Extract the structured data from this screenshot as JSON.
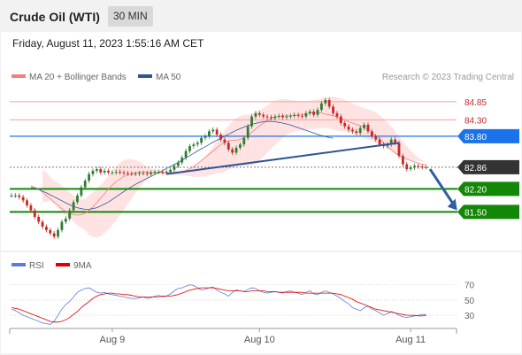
{
  "header": {
    "title": "Crude Oil (WTI)",
    "timeframe": "30 MIN"
  },
  "datetime": "Friday, August 11, 2023 1:55:16 AM CET",
  "legend": {
    "bollinger": "MA 20 + Bollinger Bands",
    "ma50": "MA 50",
    "copyright": "Research © 2023 Trading Central"
  },
  "colors": {
    "bullish": "#2e7d32",
    "bearish": "#c62828",
    "bollinger": "#ffdede",
    "ma20": "#f08080",
    "ma50": "#2f5597",
    "pivot": "#1a73e8",
    "support": "#138808",
    "resistance": "#f4a0a0",
    "current": "#333333",
    "rsi": "#5b7fd6",
    "rsi_ma": "#e00000",
    "arrow": "#2f5f9e"
  },
  "chart_data": [
    {
      "type": "candlestick",
      "title": "",
      "ylim": [
        80.65,
        85.25
      ],
      "x_labels": [
        {
          "label": "Aug 9",
          "index": 26
        },
        {
          "label": "Aug 10",
          "index": 64
        },
        {
          "label": "Aug 11",
          "index": 103
        }
      ],
      "levels": [
        {
          "value": 84.85,
          "label": "84.85",
          "kind": "resistance"
        },
        {
          "value": 84.3,
          "label": "84.30",
          "kind": "resistance"
        },
        {
          "value": 83.8,
          "label": "83.80",
          "kind": "pivot"
        },
        {
          "value": 82.86,
          "label": "82.86",
          "kind": "current"
        },
        {
          "value": 82.2,
          "label": "82.20",
          "kind": "support"
        },
        {
          "value": 81.5,
          "label": "81.50",
          "kind": "support"
        }
      ],
      "trendline": {
        "from": {
          "index": 40,
          "value": 82.65
        },
        "to": {
          "index": 100,
          "value": 83.6
        }
      },
      "forecast_arrow": {
        "from": {
          "index": 108,
          "value": 82.8
        },
        "to": {
          "index": 115,
          "value": 81.55
        }
      },
      "closes": [
        82.0,
        82.0,
        81.95,
        81.85,
        81.7,
        81.55,
        81.35,
        81.2,
        81.05,
        80.95,
        80.85,
        80.75,
        80.95,
        81.2,
        81.3,
        81.55,
        81.8,
        82.0,
        82.25,
        82.45,
        82.65,
        82.75,
        82.8,
        82.7,
        82.75,
        82.7,
        82.7,
        82.72,
        82.7,
        82.68,
        82.67,
        82.66,
        82.66,
        82.68,
        82.68,
        82.65,
        82.7,
        82.72,
        82.72,
        82.7,
        82.72,
        82.78,
        82.9,
        83.0,
        83.15,
        83.35,
        83.5,
        83.55,
        83.6,
        83.75,
        83.8,
        83.95,
        84.0,
        83.85,
        83.7,
        83.6,
        83.4,
        83.3,
        83.45,
        83.55,
        83.75,
        84.1,
        84.4,
        84.5,
        84.45,
        84.4,
        84.38,
        84.35,
        84.4,
        84.42,
        84.38,
        84.4,
        84.42,
        84.45,
        84.42,
        84.4,
        84.5,
        84.55,
        84.45,
        84.6,
        84.8,
        84.9,
        84.7,
        84.5,
        84.4,
        84.2,
        84.1,
        84.0,
        83.95,
        83.9,
        84.05,
        84.15,
        83.95,
        83.8,
        83.7,
        83.55,
        83.5,
        83.55,
        83.7,
        83.6,
        83.2,
        82.95,
        82.8,
        82.85,
        82.9,
        82.88,
        82.86,
        82.86
      ],
      "ma20": [
        82.3,
        82.25,
        82.2,
        82.1,
        82.0,
        81.9,
        81.8,
        81.7,
        81.6,
        81.52,
        81.46,
        81.42,
        81.4,
        81.42,
        81.46,
        81.55,
        81.65,
        81.78,
        81.92,
        82.05,
        82.2,
        82.32,
        82.42,
        82.5,
        82.58,
        82.62,
        82.66,
        82.69,
        82.71,
        82.72,
        82.71,
        82.7,
        82.69,
        82.69,
        82.69,
        82.69,
        82.7,
        82.7,
        82.71,
        82.72,
        82.76,
        82.81,
        82.88,
        82.97,
        83.06,
        83.16,
        83.25,
        83.35,
        83.45,
        83.54,
        83.62,
        83.66,
        83.68,
        83.68,
        83.7,
        83.75,
        83.82,
        83.92,
        84.02,
        84.12,
        84.2,
        84.28,
        84.34,
        84.38,
        84.4,
        84.42,
        84.42,
        84.42,
        84.43,
        84.44,
        84.46,
        84.48,
        84.5,
        84.52,
        84.52,
        84.5,
        84.47,
        84.45,
        84.42,
        84.38,
        84.34,
        84.3,
        84.25,
        84.2,
        84.16,
        84.12,
        84.06,
        84.0,
        83.92,
        83.83,
        83.72,
        83.6,
        83.5,
        83.4,
        83.3,
        83.22,
        83.15,
        83.1,
        83.06,
        83.02,
        82.98,
        82.95,
        82.93
      ],
      "ma50": [
        82.25,
        82.22,
        82.18,
        82.13,
        82.08,
        82.02,
        81.96,
        81.9,
        81.84,
        81.78,
        81.72,
        81.67,
        81.63,
        81.6,
        81.58,
        81.58,
        81.6,
        81.63,
        81.68,
        81.74,
        81.8,
        81.88,
        81.96,
        82.04,
        82.12,
        82.2,
        82.27,
        82.34,
        82.4,
        82.46,
        82.52,
        82.58,
        82.64,
        82.7,
        82.76,
        82.82,
        82.88,
        82.94,
        83.0,
        83.07,
        83.14,
        83.21,
        83.28,
        83.35,
        83.42,
        83.48,
        83.55,
        83.62,
        83.68,
        83.74,
        83.8,
        83.86,
        83.92,
        83.98,
        84.03,
        84.08,
        84.12,
        84.16,
        84.19,
        84.22,
        84.24,
        84.25,
        84.25,
        84.24,
        84.22,
        84.2,
        84.17,
        84.14,
        84.1,
        84.06,
        84.02,
        83.98,
        83.94,
        83.9,
        83.86,
        83.82,
        83.79,
        83.76,
        83.74
      ],
      "bb_upper": [
        82.8,
        82.7,
        82.55,
        82.45,
        82.4,
        82.3,
        82.2,
        82.1,
        82.0,
        81.92,
        81.88,
        81.9,
        82.0,
        82.1,
        82.2,
        82.32,
        82.45,
        82.6,
        82.75,
        82.9,
        83.0,
        83.08,
        83.1,
        83.1,
        83.08,
        83.02,
        82.95,
        82.88,
        82.82,
        82.78,
        82.75,
        82.73,
        82.73,
        82.74,
        82.75,
        82.76,
        82.78,
        82.8,
        82.83,
        82.88,
        82.95,
        83.05,
        83.18,
        83.32,
        83.48,
        83.65,
        83.82,
        83.98,
        84.12,
        84.25,
        84.35,
        84.42,
        84.45,
        84.46,
        84.48,
        84.52,
        84.58,
        84.66,
        84.74,
        84.82,
        84.88,
        84.92,
        84.93,
        84.92,
        84.9,
        84.88,
        84.87,
        84.87,
        84.87,
        84.88,
        84.9,
        84.92,
        84.95,
        84.98,
        85.0,
        85.0,
        84.98,
        84.95,
        84.9,
        84.85,
        84.8,
        84.75,
        84.7,
        84.66,
        84.62,
        84.58,
        84.52,
        84.44,
        84.34,
        84.22,
        84.1,
        83.95,
        83.8,
        83.65,
        83.5,
        83.38,
        83.25,
        83.15,
        83.08,
        83.02
      ],
      "bb_lower": [
        81.8,
        81.8,
        81.85,
        81.75,
        81.6,
        81.5,
        81.4,
        81.3,
        81.2,
        81.1,
        81.02,
        80.95,
        80.8,
        80.74,
        80.72,
        80.76,
        80.85,
        80.96,
        81.1,
        81.25,
        81.4,
        81.56,
        81.74,
        81.9,
        82.08,
        82.22,
        82.37,
        82.5,
        82.6,
        82.66,
        82.67,
        82.67,
        82.65,
        82.64,
        82.63,
        82.62,
        82.62,
        82.6,
        82.59,
        82.56,
        82.57,
        82.57,
        82.58,
        82.62,
        82.64,
        82.67,
        82.68,
        82.72,
        82.78,
        82.83,
        82.89,
        82.9,
        82.91,
        82.9,
        82.92,
        82.98,
        83.06,
        83.18,
        83.3,
        83.42,
        83.52,
        83.64,
        83.75,
        83.84,
        83.9,
        83.96,
        83.97,
        83.97,
        83.99,
        84.0,
        84.02,
        84.04,
        84.05,
        84.06,
        84.04,
        84.0,
        83.96,
        83.95,
        83.94,
        83.91,
        83.88,
        83.85,
        83.8,
        83.74,
        83.7,
        83.66,
        83.6,
        83.56,
        83.5,
        83.44,
        83.34,
        83.25,
        83.2,
        83.15,
        83.1,
        83.06,
        83.05,
        83.05,
        83.04,
        83.02,
        82.98,
        82.95,
        82.93
      ]
    },
    {
      "type": "line",
      "title": "",
      "legend": [
        {
          "name": "RSI"
        },
        {
          "name": "9MA"
        }
      ],
      "ylim": [
        15,
        80
      ],
      "yticks": [
        {
          "value": 70,
          "label": "70"
        },
        {
          "value": 50,
          "label": "50"
        },
        {
          "value": 30,
          "label": "30"
        }
      ],
      "rsi": [
        38,
        36,
        33,
        30,
        28,
        26,
        24,
        22,
        20,
        19,
        18,
        22,
        30,
        38,
        44,
        48,
        54,
        60,
        63,
        65,
        66,
        63,
        60,
        59,
        60,
        58,
        57,
        56,
        55,
        54,
        53,
        52,
        52,
        53,
        54,
        52,
        53,
        55,
        56,
        54,
        55,
        58,
        62,
        65,
        66,
        68,
        70,
        69,
        66,
        63,
        64,
        66,
        67,
        63,
        60,
        58,
        55,
        60,
        63,
        62,
        61,
        64,
        66,
        65,
        62,
        60,
        59,
        60,
        61,
        60,
        59,
        61,
        62,
        60,
        59,
        57,
        60,
        62,
        58,
        57,
        60,
        62,
        60,
        58,
        55,
        52,
        48,
        45,
        40,
        38,
        36,
        40,
        42,
        38,
        36,
        33,
        30,
        32,
        35,
        33,
        30,
        28,
        27,
        28,
        29,
        30,
        31,
        31
      ],
      "rsi_ma": [
        40,
        39,
        38,
        36,
        34,
        32,
        30,
        28,
        26,
        24,
        22,
        21,
        21,
        22,
        24,
        27,
        31,
        35,
        40,
        44,
        48,
        52,
        55,
        57,
        58,
        59,
        59,
        58,
        58,
        57,
        57,
        56,
        55,
        54,
        54,
        54,
        54,
        54,
        54,
        55,
        55,
        55,
        56,
        57,
        59,
        61,
        63,
        64,
        65,
        66,
        66,
        66,
        66,
        65,
        64,
        63,
        62,
        62,
        62,
        62,
        61,
        61,
        62,
        62,
        62,
        62,
        61,
        61,
        61,
        60,
        60,
        60,
        60,
        60,
        60,
        60,
        59,
        59,
        59,
        59,
        59,
        59,
        59,
        59,
        58,
        57,
        55,
        53,
        51,
        48,
        46,
        44,
        42,
        40,
        38,
        37,
        36,
        35,
        34,
        33,
        32,
        31,
        30,
        30,
        30,
        29,
        29,
        30
      ]
    }
  ]
}
